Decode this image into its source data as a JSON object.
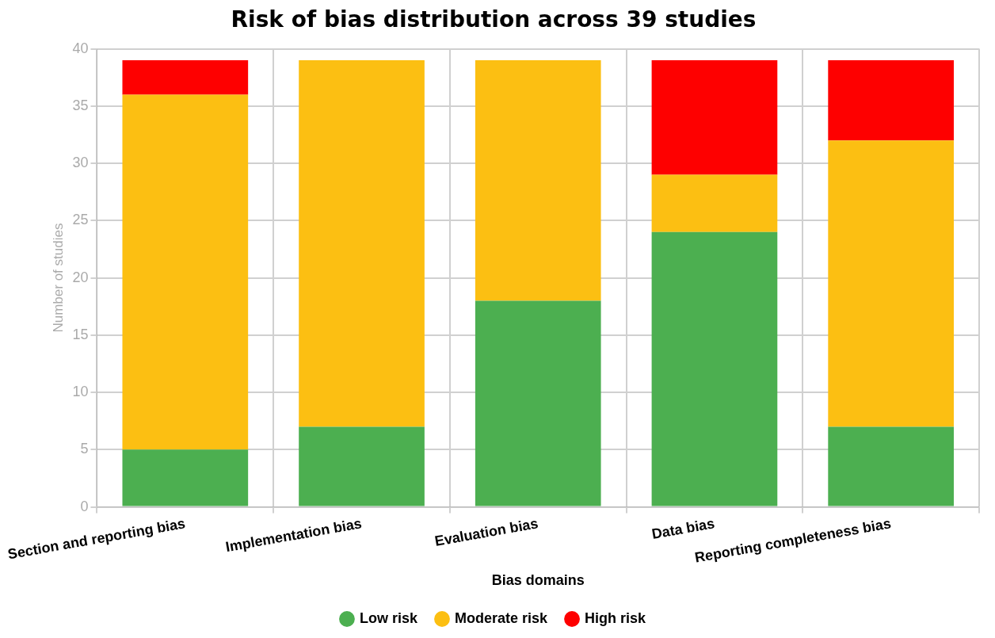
{
  "chart_data": {
    "type": "bar",
    "title": "Risk of bias distribution across 39 studies",
    "xlabel": "Bias domains",
    "ylabel": "Number of studies",
    "categories": [
      "Section and reporting bias",
      "Implementation bias",
      "Evaluation bias",
      "Data bias",
      "Reporting completeness bias"
    ],
    "stacked": true,
    "series": [
      {
        "name": "Low risk",
        "color": "#4caf50",
        "values": [
          5,
          7,
          18,
          24,
          7
        ]
      },
      {
        "name": "Moderate risk",
        "color": "#fcbf12",
        "values": [
          31,
          32,
          21,
          5,
          25
        ]
      },
      {
        "name": "High risk",
        "color": "#fe0000",
        "values": [
          3,
          0,
          0,
          10,
          7
        ]
      }
    ],
    "ylim": [
      0,
      40
    ],
    "yticks": [
      0,
      5,
      10,
      15,
      20,
      25,
      30,
      35,
      40
    ],
    "grid": true,
    "legend": "bottom"
  }
}
